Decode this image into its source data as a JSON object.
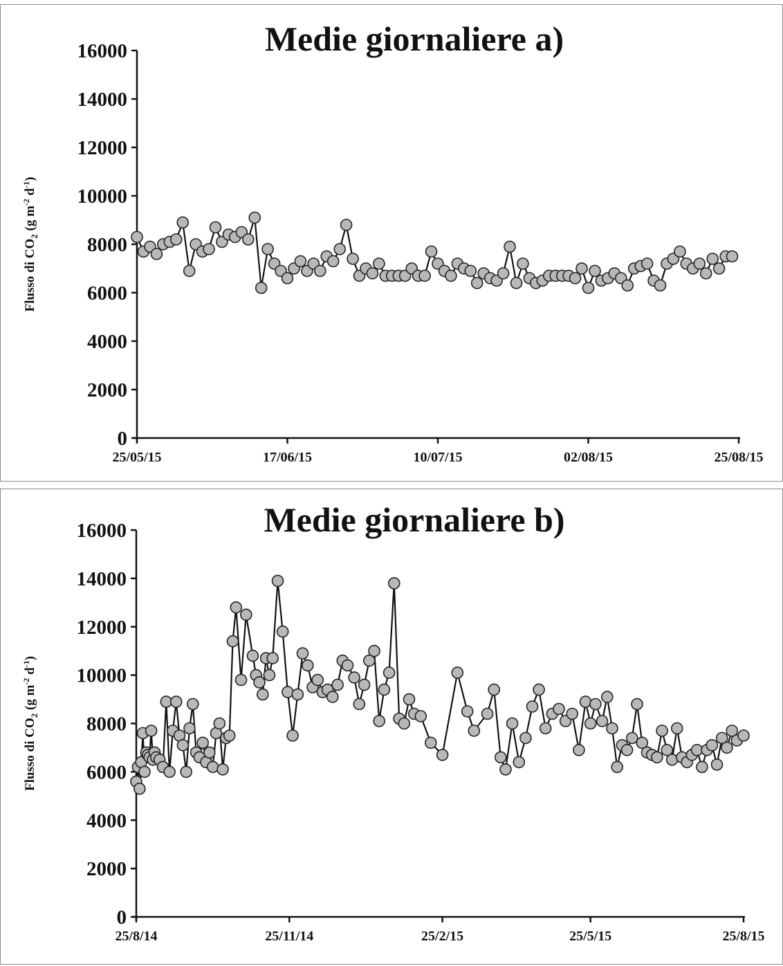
{
  "chart_data": [
    {
      "type": "line",
      "title": "Medie giornaliere a)",
      "ylabel": "Flusso di CO2 (g m-2 d-1)",
      "ylabel_parts": {
        "main": "Flusso di CO",
        "sub": "2",
        "open": " (g m",
        "sup1": "-2",
        "mid": " d",
        "sup2": "-1",
        "close": ")"
      },
      "xlabel": "",
      "ylim": [
        0,
        16000
      ],
      "yticks": [
        0,
        2000,
        4000,
        6000,
        8000,
        10000,
        12000,
        14000,
        16000
      ],
      "yticklabels": [
        "0",
        "2000",
        "4000",
        "6000",
        "8000",
        "10000",
        "12000",
        "14000",
        "16000"
      ],
      "xlim": [
        "2015-05-25",
        "2015-08-25"
      ],
      "xticks": [
        "2015-05-25",
        "2015-06-17",
        "2015-07-10",
        "2015-08-02",
        "2015-08-25"
      ],
      "xticklabels": [
        "25/05/15",
        "17/06/15",
        "10/07/15",
        "02/08/15",
        "25/08/15"
      ],
      "grid": false,
      "marker": "circle",
      "series": [
        {
          "x": [
            "2015-05-25",
            "2015-05-26",
            "2015-05-27",
            "2015-05-28",
            "2015-05-29",
            "2015-05-30",
            "2015-05-31",
            "2015-06-01",
            "2015-06-02",
            "2015-06-03",
            "2015-06-04",
            "2015-06-05",
            "2015-06-06",
            "2015-06-07",
            "2015-06-08",
            "2015-06-09",
            "2015-06-10",
            "2015-06-11",
            "2015-06-12",
            "2015-06-13",
            "2015-06-14",
            "2015-06-15",
            "2015-06-16",
            "2015-06-17",
            "2015-06-18",
            "2015-06-19",
            "2015-06-20",
            "2015-06-21",
            "2015-06-22",
            "2015-06-23",
            "2015-06-24",
            "2015-06-25",
            "2015-06-26",
            "2015-06-27",
            "2015-06-28",
            "2015-06-29",
            "2015-06-30",
            "2015-07-01",
            "2015-07-02",
            "2015-07-03",
            "2015-07-04",
            "2015-07-05",
            "2015-07-06",
            "2015-07-07",
            "2015-07-08",
            "2015-07-09",
            "2015-07-10",
            "2015-07-11",
            "2015-07-12",
            "2015-07-13",
            "2015-07-14",
            "2015-07-15",
            "2015-07-16",
            "2015-07-17",
            "2015-07-18",
            "2015-07-19",
            "2015-07-20",
            "2015-07-21",
            "2015-07-22",
            "2015-07-23",
            "2015-07-24",
            "2015-07-25",
            "2015-07-26",
            "2015-07-27",
            "2015-07-28",
            "2015-07-29",
            "2015-07-30",
            "2015-07-31",
            "2015-08-01",
            "2015-08-02",
            "2015-08-03",
            "2015-08-04",
            "2015-08-05",
            "2015-08-06",
            "2015-08-07",
            "2015-08-08",
            "2015-08-09",
            "2015-08-10",
            "2015-08-11",
            "2015-08-12",
            "2015-08-13",
            "2015-08-14",
            "2015-08-15",
            "2015-08-16",
            "2015-08-17",
            "2015-08-18",
            "2015-08-19",
            "2015-08-20",
            "2015-08-21",
            "2015-08-22",
            "2015-08-23",
            "2015-08-24"
          ],
          "values": [
            8300,
            7700,
            7900,
            7600,
            8000,
            8100,
            8200,
            8900,
            6900,
            8000,
            7700,
            7800,
            8700,
            8100,
            8400,
            8300,
            8500,
            8200,
            9100,
            6200,
            7800,
            7200,
            6900,
            6600,
            7000,
            7300,
            6900,
            7200,
            6900,
            7500,
            7300,
            7800,
            8800,
            7400,
            6700,
            7000,
            6800,
            7200,
            6700,
            6700,
            6700,
            6700,
            7000,
            6700,
            6700,
            7700,
            7200,
            6900,
            6700,
            7200,
            7000,
            6900,
            6400,
            6800,
            6600,
            6500,
            6800,
            7900,
            6400,
            7200,
            6600,
            6400,
            6500,
            6700,
            6700,
            6700,
            6700,
            6600,
            7000,
            6200,
            6900,
            6500,
            6600,
            6800,
            6600,
            6300,
            7000,
            7100,
            7200,
            6500,
            6300,
            7200,
            7400,
            7700,
            7200,
            7000,
            7200,
            6800,
            7400,
            7000,
            7500,
            7500
          ]
        }
      ]
    },
    {
      "type": "line",
      "title": "Medie giornaliere b)",
      "ylabel": "Flusso di CO2 (g m-2 d-1)",
      "ylabel_parts": {
        "main": "Flusso di CO",
        "sub": "2",
        "open": " (g m",
        "sup1": "-2",
        "mid": " d",
        "sup2": "-1",
        "close": ")"
      },
      "xlabel": "",
      "ylim": [
        0,
        16000
      ],
      "yticks": [
        0,
        2000,
        4000,
        6000,
        8000,
        10000,
        12000,
        14000,
        16000
      ],
      "yticklabels": [
        "0",
        "2000",
        "4000",
        "6000",
        "8000",
        "10000",
        "12000",
        "14000",
        "16000"
      ],
      "xlim": [
        "2014-08-25",
        "2015-08-25"
      ],
      "xticks": [
        "2014-08-25",
        "2014-11-25",
        "2015-02-25",
        "2015-05-25",
        "2015-08-25"
      ],
      "xticklabels": [
        "25/8/14",
        "25/11/14",
        "25/2/15",
        "25/5/15",
        "25/8/15"
      ],
      "grid": false,
      "marker": "circle",
      "series": [
        {
          "x": [
            "2014-08-25",
            "2014-08-26",
            "2014-08-27",
            "2014-08-28",
            "2014-08-29",
            "2014-08-30",
            "2014-08-31",
            "2014-09-01",
            "2014-09-02",
            "2014-09-03",
            "2014-09-04",
            "2014-09-05",
            "2014-09-06",
            "2014-09-08",
            "2014-09-10",
            "2014-09-12",
            "2014-09-14",
            "2014-09-16",
            "2014-09-18",
            "2014-09-20",
            "2014-09-22",
            "2014-09-24",
            "2014-09-26",
            "2014-09-28",
            "2014-09-30",
            "2014-10-02",
            "2014-10-04",
            "2014-10-06",
            "2014-10-08",
            "2014-10-10",
            "2014-10-12",
            "2014-10-14",
            "2014-10-16",
            "2014-10-18",
            "2014-10-20",
            "2014-10-22",
            "2014-10-24",
            "2014-10-27",
            "2014-10-30",
            "2014-11-03",
            "2014-11-05",
            "2014-11-07",
            "2014-11-09",
            "2014-11-11",
            "2014-11-13",
            "2014-11-15",
            "2014-11-18",
            "2014-11-21",
            "2014-11-24",
            "2014-11-27",
            "2014-11-30",
            "2014-12-03",
            "2014-12-06",
            "2014-12-09",
            "2014-12-12",
            "2014-12-15",
            "2014-12-18",
            "2014-12-21",
            "2014-12-24",
            "2014-12-27",
            "2014-12-30",
            "2015-01-03",
            "2015-01-06",
            "2015-01-09",
            "2015-01-12",
            "2015-01-15",
            "2015-01-18",
            "2015-01-21",
            "2015-01-24",
            "2015-01-27",
            "2015-01-30",
            "2015-02-02",
            "2015-02-05",
            "2015-02-08",
            "2015-02-12",
            "2015-02-18",
            "2015-02-25",
            "2015-03-06",
            "2015-03-12",
            "2015-03-16",
            "2015-03-24",
            "2015-03-28",
            "2015-04-01",
            "2015-04-04",
            "2015-04-08",
            "2015-04-12",
            "2015-04-16",
            "2015-04-20",
            "2015-04-24",
            "2015-04-28",
            "2015-05-02",
            "2015-05-06",
            "2015-05-10",
            "2015-05-14",
            "2015-05-18",
            "2015-05-22",
            "2015-05-25",
            "2015-05-28",
            "2015-06-01",
            "2015-06-04",
            "2015-06-07",
            "2015-06-10",
            "2015-06-13",
            "2015-06-16",
            "2015-06-19",
            "2015-06-22",
            "2015-06-25",
            "2015-06-28",
            "2015-07-01",
            "2015-07-04",
            "2015-07-07",
            "2015-07-10",
            "2015-07-13",
            "2015-07-16",
            "2015-07-19",
            "2015-07-22",
            "2015-07-25",
            "2015-07-28",
            "2015-07-31",
            "2015-08-03",
            "2015-08-06",
            "2015-08-09",
            "2015-08-12",
            "2015-08-15",
            "2015-08-18",
            "2015-08-21",
            "2015-08-25"
          ],
          "values": [
            5600,
            6200,
            5300,
            6400,
            7600,
            6000,
            6800,
            6700,
            6600,
            7700,
            6500,
            6800,
            6600,
            6500,
            6200,
            8900,
            6000,
            7700,
            8900,
            7500,
            7100,
            6000,
            7800,
            8800,
            6800,
            6600,
            7200,
            6400,
            6800,
            6200,
            7600,
            8000,
            6100,
            7400,
            7500,
            11400,
            12800,
            9800,
            12500,
            10800,
            10000,
            9700,
            9200,
            10700,
            10000,
            10700,
            13900,
            11800,
            9300,
            7500,
            9200,
            10900,
            10400,
            9500,
            9800,
            9300,
            9400,
            9100,
            9600,
            10600,
            10400,
            9900,
            8800,
            9600,
            10600,
            11000,
            8100,
            9400,
            10100,
            13800,
            8200,
            8000,
            9000,
            8400,
            8300,
            7200,
            6700,
            10100,
            8500,
            7700,
            8400,
            9400,
            6600,
            6100,
            8000,
            6400,
            7400,
            8700,
            9400,
            7800,
            8400,
            8600,
            8100,
            8400,
            6900,
            8900,
            8000,
            8800,
            8100,
            9100,
            7800,
            6200,
            7100,
            6900,
            7400,
            8800,
            7200,
            6800,
            6700,
            6600,
            7700,
            6900,
            6500,
            7800,
            6600,
            6400,
            6700,
            6900,
            6200,
            6900,
            7100,
            6300,
            7400,
            7000,
            7700,
            7300,
            7500
          ]
        }
      ]
    }
  ]
}
